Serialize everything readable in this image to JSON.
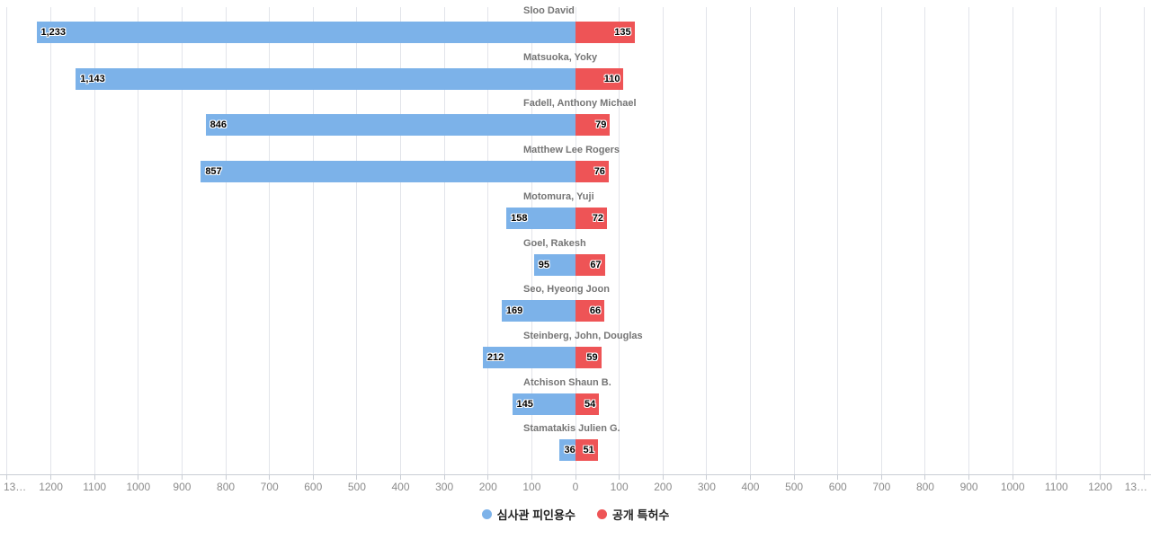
{
  "chart_data": {
    "type": "bar",
    "subtype": "diverging-horizontal-tornado",
    "title": "",
    "categories": [
      "Sloo David",
      "Matsuoka, Yoky",
      "Fadell, Anthony Michael",
      "Matthew Lee Rogers",
      "Motomura, Yuji",
      "Goel, Rakesh",
      "Seo, Hyeong Joon",
      "Steinberg, John, Douglas",
      "Atchison Shaun B.",
      "Stamatakis Julien G."
    ],
    "series": [
      {
        "name": "심사관 피인용수",
        "side": "left",
        "color": "#7cb2e9",
        "values": [
          1233,
          1143,
          846,
          857,
          158,
          95,
          169,
          212,
          145,
          36
        ],
        "value_labels": [
          "1,233",
          "1,143",
          "846",
          "857",
          "158",
          "95",
          "169",
          "212",
          "145",
          "36"
        ]
      },
      {
        "name": "공개 특허수",
        "side": "right",
        "color": "#ee5456",
        "values": [
          135,
          110,
          79,
          76,
          72,
          67,
          66,
          59,
          54,
          51
        ],
        "value_labels": [
          "135",
          "110",
          "79",
          "76",
          "72",
          "67",
          "66",
          "59",
          "54",
          "51"
        ]
      }
    ],
    "x_axis": {
      "min": -1300,
      "max": 1300,
      "tick_step": 100,
      "tick_labels": [
        "13…",
        "1200",
        "1100",
        "1000",
        "900",
        "800",
        "700",
        "600",
        "500",
        "400",
        "300",
        "200",
        "100",
        "0",
        "100",
        "200",
        "300",
        "400",
        "500",
        "600",
        "700",
        "800",
        "900",
        "1000",
        "1100",
        "1200",
        "13…"
      ]
    },
    "grid": true,
    "legend": {
      "position": "bottom",
      "items": [
        {
          "label": "심사관 피인용수",
          "color": "#7cb2e9"
        },
        {
          "label": "공개 특허수",
          "color": "#ee5456"
        }
      ]
    }
  },
  "colors": {
    "background": "#ffffff",
    "blue_series": "#7cb2e9",
    "red_series": "#ee5456",
    "category_label": "#757575",
    "axis_label": "#8b8b8b",
    "gridline": "#e2e4ea",
    "axis_line": "#c9cdd4",
    "value_label_text": "#000000",
    "value_label_outline": "#ffffff"
  }
}
